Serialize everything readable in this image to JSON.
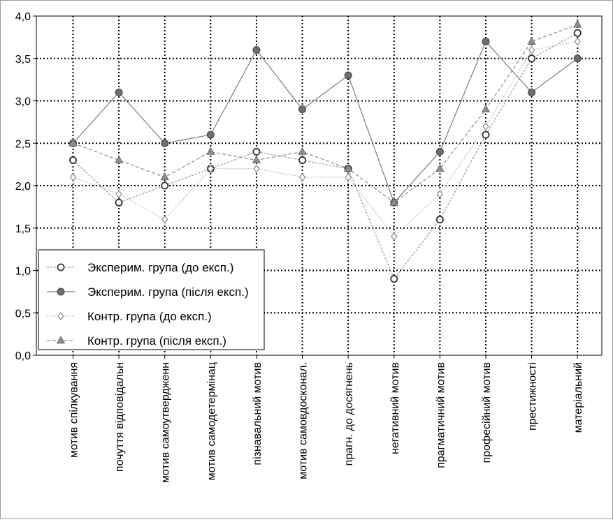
{
  "chart_data": {
    "type": "line",
    "title": "",
    "xlabel": "",
    "ylabel": "",
    "ylim": [
      0.0,
      4.0
    ],
    "yticks": [
      "0,0",
      "0,5",
      "1,0",
      "1,5",
      "2,0",
      "2,5",
      "3,0",
      "3,5",
      "4,0"
    ],
    "grid": true,
    "legend_position": "bottom-left",
    "categories": [
      "мотив спілкування",
      "почуття відповідальн",
      "мотив самоутвердженн",
      "мотив самодетермінац",
      "пізнавальний мотив",
      "мотив самовдосконал.",
      "прагн. до досягнень",
      "негативний мотив",
      "прагматичний мотив",
      "професійний мотив",
      "престижності",
      "матеріальний"
    ],
    "series": [
      {
        "name": "Эксперим. група (до експ.)",
        "marker": "open-circle",
        "values": [
          2.3,
          1.8,
          2.0,
          2.2,
          2.4,
          2.3,
          2.2,
          0.9,
          1.6,
          2.6,
          3.5,
          3.8
        ]
      },
      {
        "name": "Эксперим. група (після експ.)",
        "marker": "filled-circle",
        "values": [
          2.5,
          3.1,
          2.5,
          2.6,
          3.6,
          2.9,
          3.3,
          1.8,
          2.4,
          3.7,
          3.1,
          3.5
        ]
      },
      {
        "name": "Контр. група (до експ.)",
        "marker": "open-diamond",
        "values": [
          2.1,
          1.9,
          1.6,
          2.2,
          2.2,
          2.1,
          2.1,
          1.4,
          1.9,
          2.7,
          3.6,
          3.7
        ]
      },
      {
        "name": "Контр. група (після експ.)",
        "marker": "filled-triangle",
        "values": [
          2.5,
          2.3,
          2.1,
          2.4,
          2.3,
          2.4,
          2.2,
          1.8,
          2.2,
          2.9,
          3.7,
          3.9
        ]
      }
    ]
  }
}
